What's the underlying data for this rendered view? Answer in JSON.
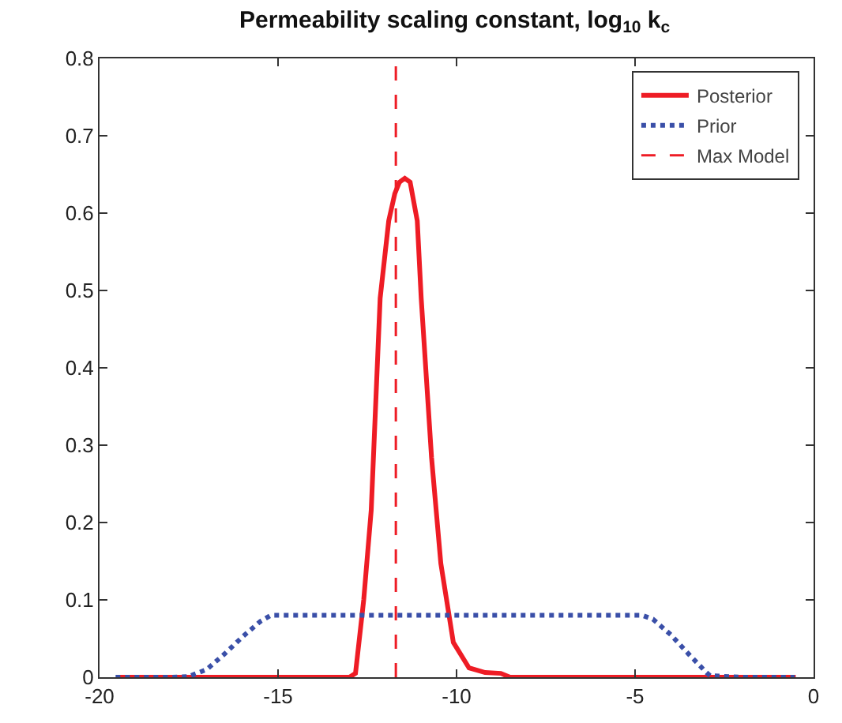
{
  "chart_data": {
    "type": "line",
    "title": "Permeability scaling constant, log$_{10}$ k$_{c}$",
    "series": [
      {
        "name": "Posterior",
        "color": "#ee1c25",
        "line_style": "solid",
        "x": [
          -19.5,
          -13,
          -12.83,
          -12.6,
          -12.39,
          -12.14,
          -11.9,
          -11.73,
          -11.6,
          -11.45,
          -11.3,
          -11.1,
          -10.99,
          -10.7,
          -10.44,
          -10.09,
          -9.65,
          -9.2,
          -8.76,
          -8.5,
          -0.5
        ],
        "values": [
          0,
          0,
          0.005,
          0.1,
          0.216,
          0.49,
          0.59,
          0.625,
          0.64,
          0.645,
          0.64,
          0.59,
          0.49,
          0.284,
          0.147,
          0.045,
          0.012,
          0.006,
          0.005,
          0,
          0
        ]
      },
      {
        "name": "Prior",
        "color": "#3a4fa8",
        "line_style": "dotted",
        "x": [
          -19.55,
          -18,
          -17.5,
          -17,
          -16.5,
          -16,
          -15.5,
          -15.2,
          -10,
          -4.8,
          -4.5,
          -4,
          -3.5,
          -3,
          -2.9,
          -2,
          -0.53
        ],
        "values": [
          0,
          0,
          0.001,
          0.01,
          0.03,
          0.052,
          0.072,
          0.08,
          0.08,
          0.08,
          0.075,
          0.055,
          0.03,
          0.006,
          0.002,
          0,
          0
        ]
      },
      {
        "name": "Max Model",
        "color": "#ee1c25",
        "line_style": "dashed",
        "x": [
          -11.7,
          -11.7
        ],
        "values": [
          0,
          0.8
        ]
      }
    ],
    "xlim": [
      -20,
      0
    ],
    "xticks": [
      -20,
      -15,
      -10,
      -5,
      0
    ],
    "ylim": [
      0,
      0.8
    ],
    "yticks": [
      0,
      0.1,
      0.2,
      0.3,
      0.4,
      0.5,
      0.6,
      0.7,
      0.8
    ],
    "grid": false,
    "legend": "top right",
    "marker": "none"
  }
}
